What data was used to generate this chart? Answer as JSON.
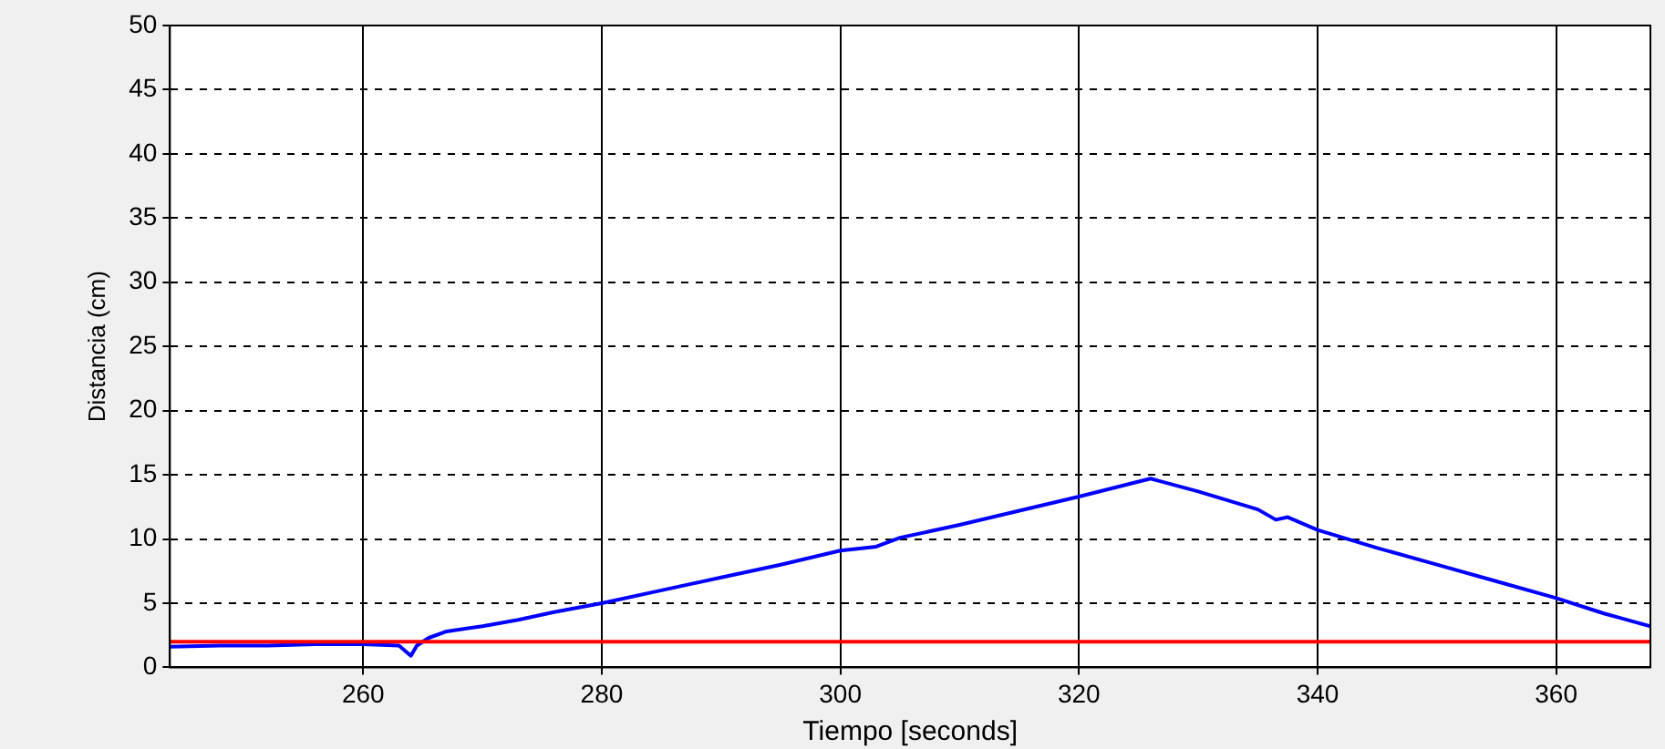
{
  "chart_data": {
    "type": "line",
    "xlabel": "Tiempo [seconds]",
    "ylabel": "Distancia (cm)",
    "xlim": [
      243.8,
      367.9
    ],
    "xticks": [
      260,
      280,
      300,
      320,
      340,
      360
    ],
    "ylim": [
      0,
      50
    ],
    "yticks": [
      0,
      5,
      10,
      15,
      20,
      25,
      30,
      35,
      40,
      45,
      50
    ],
    "grid": true,
    "legend": false,
    "marker": "none",
    "line_style": "solid",
    "series": [
      {
        "color": "#0000ff",
        "x": [
          243.8,
          248,
          252,
          256,
          260,
          263,
          264,
          264.5,
          265.5,
          267,
          270,
          273,
          276,
          280,
          285,
          290,
          295,
          300,
          303,
          305,
          310,
          315,
          320,
          326,
          330,
          335,
          336.5,
          337.5,
          340,
          345,
          350,
          355,
          360,
          364,
          367.9
        ],
        "values": [
          1.6,
          1.7,
          1.7,
          1.8,
          1.8,
          1.7,
          0.9,
          1.7,
          2.3,
          2.8,
          3.2,
          3.7,
          4.3,
          5.0,
          6.0,
          7.0,
          8.0,
          9.1,
          9.4,
          10.1,
          11.1,
          12.2,
          13.3,
          14.7,
          13.7,
          12.3,
          11.5,
          11.7,
          10.7,
          9.3,
          8.0,
          6.7,
          5.4,
          4.2,
          3.2
        ]
      }
    ],
    "ref_lines": [
      {
        "axis": "y",
        "value": 2.0,
        "color": "#ff0000",
        "line_style": "solid"
      }
    ]
  }
}
